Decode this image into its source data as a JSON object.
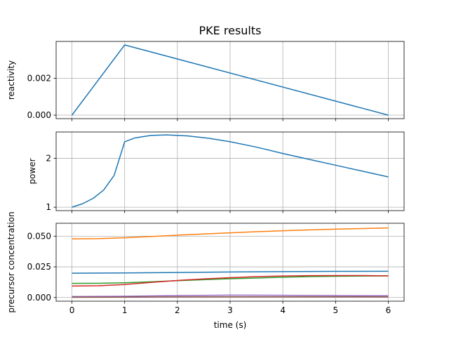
{
  "chart_data": [
    {
      "type": "line",
      "title": "PKE results",
      "xlabel": "",
      "ylabel": "reactivity",
      "xlim": [
        -0.3,
        6.3
      ],
      "ylim": [
        -0.00019,
        0.00399
      ],
      "grid": true,
      "xticks": [
        0,
        1,
        2,
        3,
        4,
        5,
        6
      ],
      "xtick_labels": [
        "",
        "",
        "",
        "",
        "",
        "",
        ""
      ],
      "yticks": [
        0,
        0.002
      ],
      "ytick_labels": [
        "0.000",
        "0.002"
      ],
      "series": [
        {
          "color": "#1f77b4",
          "x": [
            0,
            1,
            6
          ],
          "values": [
            0,
            0.0038,
            0
          ]
        }
      ]
    },
    {
      "type": "line",
      "title": "",
      "xlabel": "",
      "ylabel": "power",
      "xlim": [
        -0.3,
        6.3
      ],
      "ylim": [
        0.93,
        2.54
      ],
      "grid": true,
      "xticks": [
        0,
        1,
        2,
        3,
        4,
        5,
        6
      ],
      "xtick_labels": [
        "",
        "",
        "",
        "",
        "",
        "",
        ""
      ],
      "yticks": [
        1,
        2
      ],
      "ytick_labels": [
        "1",
        "2"
      ],
      "series": [
        {
          "color": "#1f77b4",
          "x": [
            0,
            0.2,
            0.4,
            0.6,
            0.8,
            1.0,
            1.2,
            1.5,
            1.8,
            2.2,
            2.6,
            3.0,
            3.5,
            4.0,
            4.5,
            5.0,
            5.5,
            6.0
          ],
          "values": [
            1.0,
            1.07,
            1.18,
            1.35,
            1.65,
            2.34,
            2.42,
            2.47,
            2.48,
            2.46,
            2.41,
            2.34,
            2.23,
            2.1,
            1.98,
            1.86,
            1.74,
            1.62
          ]
        }
      ]
    },
    {
      "type": "line",
      "title": "",
      "xlabel": "time (s)",
      "ylabel": "precursor concentration",
      "xlim": [
        -0.3,
        6.3
      ],
      "ylim": [
        -0.003,
        0.0605
      ],
      "grid": true,
      "xticks": [
        0,
        1,
        2,
        3,
        4,
        5,
        6
      ],
      "xtick_labels": [
        "0",
        "1",
        "2",
        "3",
        "4",
        "5",
        "6"
      ],
      "yticks": [
        0,
        0.025,
        0.05
      ],
      "ytick_labels": [
        "0.000",
        "0.025",
        "0.050"
      ],
      "series": [
        {
          "color": "#1f77b4",
          "x": [
            0,
            1,
            2,
            3,
            4,
            5,
            6
          ],
          "values": [
            0.0198,
            0.02,
            0.0204,
            0.0208,
            0.0211,
            0.0213,
            0.0214
          ]
        },
        {
          "color": "#ff7f0e",
          "x": [
            0,
            0.5,
            1,
            1.5,
            2,
            2.5,
            3,
            3.5,
            4,
            4.5,
            5,
            5.5,
            6
          ],
          "values": [
            0.0478,
            0.048,
            0.0487,
            0.0497,
            0.0508,
            0.0518,
            0.0527,
            0.0536,
            0.0544,
            0.0551,
            0.0557,
            0.0562,
            0.0567
          ]
        },
        {
          "color": "#2ca02c",
          "x": [
            0,
            0.5,
            1,
            1.5,
            2,
            2.5,
            3,
            3.5,
            4,
            4.5,
            5,
            5.5,
            6
          ],
          "values": [
            0.0115,
            0.0116,
            0.012,
            0.0128,
            0.0137,
            0.0145,
            0.0153,
            0.0159,
            0.0165,
            0.017,
            0.0173,
            0.0175,
            0.0176
          ]
        },
        {
          "color": "#d62728",
          "x": [
            0,
            0.5,
            1,
            1.5,
            2,
            2.5,
            3,
            3.5,
            4,
            4.5,
            5,
            5.5,
            6
          ],
          "values": [
            0.0094,
            0.0096,
            0.0106,
            0.0123,
            0.0139,
            0.0152,
            0.0162,
            0.017,
            0.0175,
            0.0178,
            0.0179,
            0.0179,
            0.0177
          ]
        },
        {
          "color": "#9467bd",
          "x": [
            0,
            1,
            2,
            3,
            4,
            5,
            6
          ],
          "values": [
            0.0008,
            0.001,
            0.0016,
            0.0019,
            0.0018,
            0.0016,
            0.0014
          ]
        },
        {
          "color": "#8c564b",
          "x": [
            0,
            1,
            2,
            3,
            4,
            5,
            6
          ],
          "values": [
            0.0002,
            0.0003,
            0.0005,
            0.0006,
            0.0006,
            0.0006,
            0.0005
          ]
        }
      ]
    }
  ]
}
